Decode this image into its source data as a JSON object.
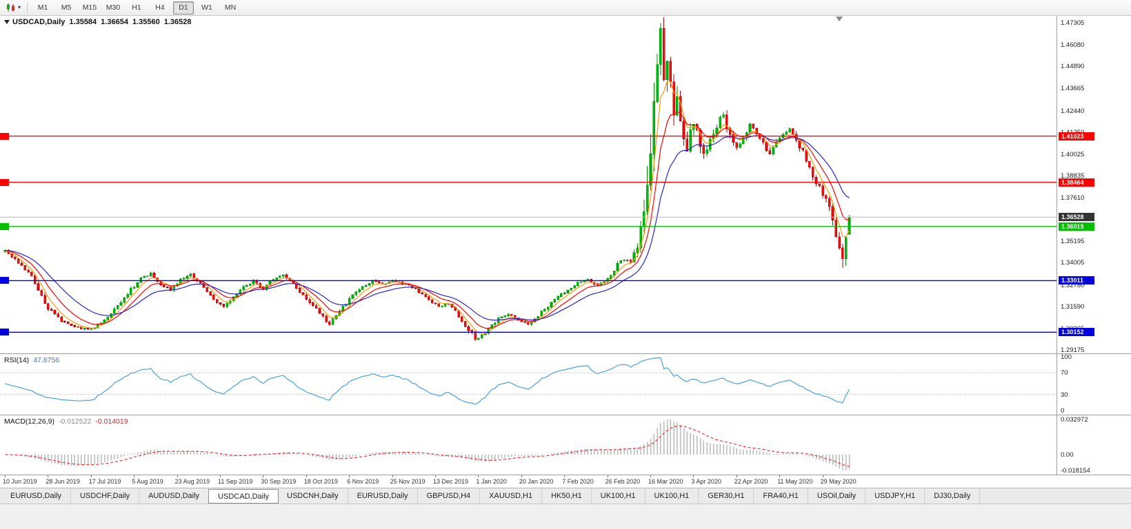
{
  "toolbar": {
    "timeframes": [
      "M1",
      "M5",
      "M15",
      "M30",
      "H1",
      "H4",
      "D1",
      "W1",
      "MN"
    ],
    "active_timeframe": "D1"
  },
  "chart": {
    "title": "USDCAD,Daily",
    "ohlc": {
      "open": "1.35584",
      "high": "1.36654",
      "low": "1.35560",
      "close": "1.36528"
    },
    "price_scale_ticks": [
      "1.47305",
      "1.46080",
      "1.44890",
      "1.43665",
      "1.42440",
      "1.41250",
      "1.40025",
      "1.38835",
      "1.37610",
      "1.36420",
      "1.35195",
      "1.34005",
      "1.32780",
      "1.31590",
      "1.30365",
      "1.29175"
    ],
    "current_price_label": {
      "text": "1.36528",
      "price": 1.36528,
      "bg": "#333333"
    },
    "hlines": [
      {
        "price": 1.41023,
        "label": "1.41023",
        "color": "#ff0000"
      },
      {
        "price": 1.38464,
        "label": "1.38464",
        "color": "#ff0000"
      },
      {
        "price": 1.36015,
        "label": "1.36015",
        "color": "#00c000"
      },
      {
        "price": 1.33011,
        "label": "1.33011",
        "color": "#0000e0"
      },
      {
        "price": 1.30152,
        "label": "1.30152",
        "color": "#0000e0"
      }
    ],
    "moving_averages": [
      {
        "period": 5,
        "color": "#ff9900"
      },
      {
        "period": 10,
        "color": "#ff0000"
      },
      {
        "period": 20,
        "color": "#2525cc"
      }
    ],
    "candle_colors": {
      "up": "#00bb10",
      "up_stroke": "#008a00",
      "down": "#ee1111",
      "down_stroke": "#aa0000"
    }
  },
  "rsi": {
    "label": "RSI(14)",
    "value": "47.8756",
    "line_color": "#4a9fe0",
    "scale": [
      "100",
      "70",
      "30",
      "0"
    ],
    "levels": [
      70,
      30
    ]
  },
  "macd": {
    "label": "MACD(12,26,9)",
    "value_main": "-0.012522",
    "value_signal": "-0.014019",
    "hist_color": "#b8b8b8",
    "signal_color": "#f03030",
    "scale_top": "0.032972",
    "scale_zero": "0.00",
    "scale_bottom": "-0.018154"
  },
  "tabs": {
    "active_index": 3,
    "items": [
      "EURUSD,Daily",
      "USDCHF,Daily",
      "AUDUSD,Daily",
      "USDCAD,Daily",
      "USDCNH,Daily",
      "EURUSD,Daily",
      "GBPUSD,H4",
      "XAUUSD,H1",
      "HK50,H1",
      "UK100,H1",
      "UK100,H1",
      "GER30,H1",
      "FRA40,H1",
      "USOil,Daily",
      "USDJPY,H1",
      "DJ30,Daily"
    ],
    "note": ""
  },
  "chart_data": {
    "type": "candlestick",
    "symbol": "USDCAD",
    "timeframe": "Daily",
    "bars": 256,
    "last_bar_ohlc": {
      "open": 1.35584,
      "high": 1.36654,
      "low": 1.3556,
      "close": 1.36528
    },
    "price_axis_range": [
      1.2898,
      1.4769
    ],
    "x_tick_dates": [
      "10 Jun 2019",
      "28 Jun 2019",
      "17 Jul 2019",
      "5 Aug 2019",
      "23 Aug 2019",
      "11 Sep 2019",
      "30 Sep 2019",
      "18 Oct 2019",
      "6 Nov 2019",
      "25 Nov 2019",
      "13 Dec 2019",
      "1 Jan 2020",
      "20 Jan 2020",
      "7 Feb 2020",
      "26 Feb 2020",
      "16 Mar 2020",
      "3 Apr 2020",
      "22 Apr 2020",
      "11 May 2020",
      "29 May 2020"
    ],
    "horizontal_lines": [
      1.41023,
      1.38464,
      1.36015,
      1.33011,
      1.30152
    ],
    "indicators": [
      "EMA(5)",
      "EMA(10)",
      "EMA(20)",
      "RSI(14)",
      "MACD(12,26,9)"
    ],
    "price_anchors": [
      [
        0,
        1.3465
      ],
      [
        4,
        1.34
      ],
      [
        8,
        1.332
      ],
      [
        13,
        1.315
      ],
      [
        17,
        1.308
      ],
      [
        22,
        1.304
      ],
      [
        26,
        1.303
      ],
      [
        29,
        1.307
      ],
      [
        33,
        1.314
      ],
      [
        37,
        1.323
      ],
      [
        41,
        1.3315
      ],
      [
        44,
        1.334
      ],
      [
        47,
        1.328
      ],
      [
        50,
        1.325
      ],
      [
        53,
        1.331
      ],
      [
        56,
        1.3335
      ],
      [
        59,
        1.3285
      ],
      [
        63,
        1.32
      ],
      [
        66,
        1.3155
      ],
      [
        69,
        1.321
      ],
      [
        72,
        1.3265
      ],
      [
        75,
        1.33
      ],
      [
        78,
        1.3255
      ],
      [
        81,
        1.331
      ],
      [
        84,
        1.333
      ],
      [
        87,
        1.328
      ],
      [
        90,
        1.322
      ],
      [
        93,
        1.316
      ],
      [
        96,
        1.31
      ],
      [
        98,
        1.306
      ],
      [
        101,
        1.313
      ],
      [
        104,
        1.32
      ],
      [
        107,
        1.3255
      ],
      [
        111,
        1.33
      ],
      [
        114,
        1.328
      ],
      [
        117,
        1.3305
      ],
      [
        121,
        1.328
      ],
      [
        125,
        1.324
      ],
      [
        128,
        1.319
      ],
      [
        131,
        1.316
      ],
      [
        134,
        1.317
      ],
      [
        137,
        1.311
      ],
      [
        140,
        1.303
      ],
      [
        142,
        1.2975
      ],
      [
        144,
        1.2995
      ],
      [
        146,
        1.304
      ],
      [
        149,
        1.309
      ],
      [
        152,
        1.312
      ],
      [
        155,
        1.308
      ],
      [
        158,
        1.306
      ],
      [
        161,
        1.311
      ],
      [
        164,
        1.316
      ],
      [
        167,
        1.321
      ],
      [
        170,
        1.325
      ],
      [
        173,
        1.329
      ],
      [
        176,
        1.331
      ],
      [
        179,
        1.327
      ],
      [
        181,
        1.33
      ],
      [
        183,
        1.333
      ],
      [
        185,
        1.3395
      ],
      [
        187,
        1.342
      ],
      [
        189,
        1.3405
      ],
      [
        191,
        1.348
      ],
      [
        192,
        1.356
      ],
      [
        193,
        1.368
      ],
      [
        194,
        1.383
      ],
      [
        195,
        1.406
      ],
      [
        196,
        1.43
      ],
      [
        197,
        1.454
      ],
      [
        198,
        1.465
      ],
      [
        199,
        1.445
      ],
      [
        200,
        1.456
      ],
      [
        201,
        1.438
      ],
      [
        202,
        1.424
      ],
      [
        203,
        1.431
      ],
      [
        204,
        1.417
      ],
      [
        205,
        1.407
      ],
      [
        206,
        1.402
      ],
      [
        207,
        1.411
      ],
      [
        208,
        1.419
      ],
      [
        209,
        1.414
      ],
      [
        210,
        1.405
      ],
      [
        211,
        1.399
      ],
      [
        213,
        1.407
      ],
      [
        215,
        1.416
      ],
      [
        217,
        1.423
      ],
      [
        219,
        1.411
      ],
      [
        221,
        1.404
      ],
      [
        223,
        1.409
      ],
      [
        225,
        1.416
      ],
      [
        227,
        1.412
      ],
      [
        229,
        1.406
      ],
      [
        231,
        1.4
      ],
      [
        233,
        1.407
      ],
      [
        235,
        1.411
      ],
      [
        237,
        1.414
      ],
      [
        239,
        1.408
      ],
      [
        241,
        1.401
      ],
      [
        243,
        1.393
      ],
      [
        245,
        1.385
      ],
      [
        247,
        1.378
      ],
      [
        249,
        1.37
      ],
      [
        250,
        1.364
      ],
      [
        251,
        1.356
      ],
      [
        252,
        1.347
      ],
      [
        253,
        1.3395
      ],
      [
        254,
        1.356
      ],
      [
        255,
        1.36528
      ]
    ]
  }
}
